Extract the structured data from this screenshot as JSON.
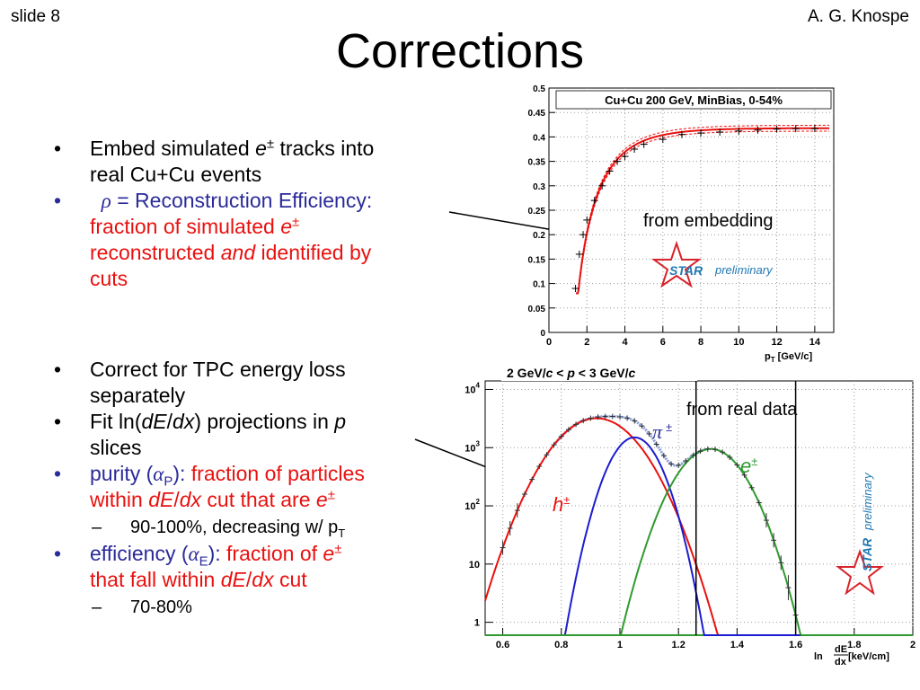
{
  "header": {
    "slide_number": "slide 8",
    "author": "A. G. Knospe",
    "title": "Corrections"
  },
  "bullets_top": [
    {
      "pre": "Embed simulated ",
      "e": "e",
      "pm": "±",
      "post": " tracks into",
      "line2": "real Cu+Cu events"
    },
    {
      "rho": "ρ",
      "eq_label": " = Reconstruction Efficiency:",
      "l1": "fraction of simulated ",
      "e": "e",
      "pm": "±",
      "l2a": "reconstructed ",
      "and": "and",
      "l2b": " identified by",
      "l3": "cuts"
    }
  ],
  "bullets_bottom": [
    {
      "l1": "Correct for TPC energy loss",
      "l2": "separately"
    },
    {
      "a": "Fit ln(",
      "dE": "dE",
      "slash": "/",
      "dx": "dx",
      "b": ") projections in ",
      "p": "p",
      "l2": "slices"
    },
    {
      "label": "purity (",
      "alpha": "α",
      "sub": "P",
      "close": "):",
      "r1": " fraction of particles",
      "r2a": "within ",
      "dE": "dE",
      "slash": "/",
      "dx": "dx",
      "r2b": " cut that are ",
      "e": "e",
      "pm": "±"
    },
    {
      "text": "90-100%, decreasing w/ p",
      "sub": "T"
    },
    {
      "label": "efficiency (",
      "alpha": "α",
      "sub": "E",
      "close": "):",
      "r1": " fraction of ",
      "e": "e",
      "pm": "±",
      "r2a": "that fall within ",
      "dE": "dE",
      "slash": "/",
      "dx": "dx",
      "r2b": " cut"
    },
    {
      "text": "70-80%"
    }
  ],
  "chart_data": [
    {
      "type": "line",
      "title": "Cu+Cu 200 GeV, MinBias, 0-54%",
      "xlabel": "p",
      "xlabel_sub": "T",
      "xlabel_unit": " [GeV/c]",
      "ylabel": "",
      "xlim": [
        0,
        15
      ],
      "ylim": [
        0,
        0.5
      ],
      "xticks": [
        0,
        2,
        4,
        6,
        8,
        10,
        12,
        14
      ],
      "yticks": [
        "0",
        "0.05",
        "0.1",
        "0.15",
        "0.2",
        "0.25",
        "0.3",
        "0.35",
        "0.4",
        "0.45",
        "0.5"
      ],
      "fit": {
        "plateau": 0.418,
        "x0": 1.4,
        "k": 1.0,
        "power": 0.8
      },
      "points": [
        [
          1.4,
          0.09
        ],
        [
          1.6,
          0.16
        ],
        [
          1.8,
          0.2
        ],
        [
          2.0,
          0.23
        ],
        [
          2.4,
          0.27
        ],
        [
          2.8,
          0.3
        ],
        [
          3.2,
          0.33
        ],
        [
          3.6,
          0.35
        ],
        [
          4.0,
          0.36
        ],
        [
          4.5,
          0.375
        ],
        [
          5.0,
          0.385
        ],
        [
          6.0,
          0.395
        ],
        [
          7.0,
          0.405
        ],
        [
          8.0,
          0.408
        ],
        [
          9.0,
          0.41
        ],
        [
          10.0,
          0.412
        ],
        [
          11.0,
          0.414
        ],
        [
          12.0,
          0.416
        ],
        [
          13.0,
          0.417
        ],
        [
          14.0,
          0.417
        ]
      ],
      "annotations": {
        "embedding": "from embedding",
        "star": "STAR",
        "preliminary": "preliminary"
      },
      "grid": true,
      "colors": {
        "fit": "#e8110f",
        "data": "#000000"
      }
    },
    {
      "type": "line",
      "title_parts": {
        "a": "2 GeV/",
        "c1": "c",
        "b": " < ",
        "p": "p",
        "c": " < 3 GeV/",
        "c2": "c"
      },
      "xlabel": "ln",
      "xlabel_frac_num": "dE",
      "xlabel_frac_den": "dx",
      "xlabel_unit": " [keV/cm]",
      "log_y": true,
      "xlim": [
        0.54,
        2.0
      ],
      "ylim": [
        0.6,
        14000
      ],
      "xticks": [
        "0.6",
        "0.8",
        "1",
        "1.2",
        "1.4",
        "1.6",
        "1.8",
        "2"
      ],
      "yticks": [
        {
          "base": "10",
          "exp": "4",
          "v": 10000
        },
        {
          "base": "10",
          "exp": "3",
          "v": 1000
        },
        {
          "base": "10",
          "exp": "2",
          "v": 100
        },
        {
          "base": "10",
          "exp": "",
          "v": 10
        },
        {
          "base": "1",
          "exp": "",
          "v": 1
        }
      ],
      "series": [
        {
          "name": "h",
          "name_sup": "±",
          "mu": 0.92,
          "sigma": 0.1,
          "amp": 3200,
          "color": "#e8110f"
        },
        {
          "name": "π",
          "name_sup": "±",
          "mu": 1.05,
          "sigma": 0.06,
          "amp": 1500,
          "color": "#1c1ccf"
        },
        {
          "name": "e",
          "name_sup": "±",
          "mu": 1.31,
          "sigma": 0.08,
          "amp": 950,
          "color": "#2f9a2f"
        }
      ],
      "cut_lines": [
        1.26,
        1.6
      ],
      "annotations": {
        "real_data": "from real data",
        "star": "STAR",
        "preliminary": "preliminary"
      },
      "colors": {
        "sum": "#8a9fd6",
        "baseline": "#2f9a2f"
      }
    }
  ]
}
